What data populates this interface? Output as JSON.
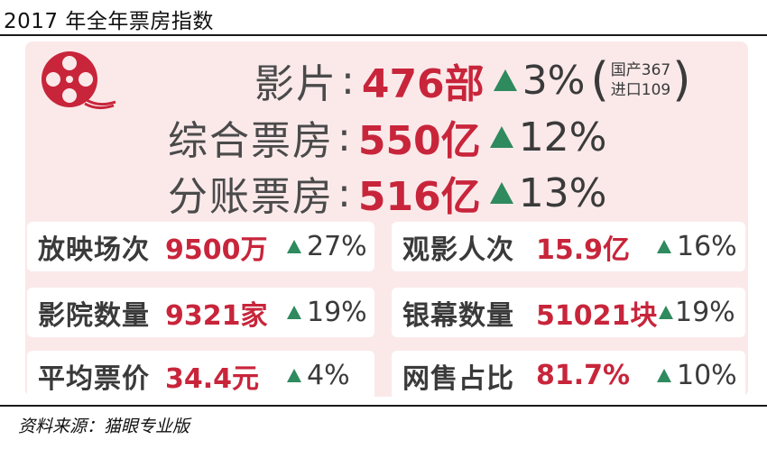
{
  "title": "2017 年全年票房指数",
  "headline": {
    "films": {
      "label": "影片",
      "value": "476部",
      "change": "3%",
      "domestic": "国产367",
      "imported": "进口109"
    },
    "gross_box": {
      "label": "综合票房",
      "value": "550亿",
      "change": "12%"
    },
    "split_box": {
      "label": "分账票房",
      "value": "516亿",
      "change": "13%"
    }
  },
  "metrics": [
    {
      "label": "放映场次",
      "value": "9500万",
      "change": "27%"
    },
    {
      "label": "观影人次",
      "value": "15.9亿",
      "change": "16%"
    },
    {
      "label": "影院数量",
      "value": "9321家",
      "change": "19%"
    },
    {
      "label": "银幕数量",
      "value": "51021块",
      "change": "19%"
    },
    {
      "label": "平均票价",
      "value": "34.4元",
      "change": "4%"
    },
    {
      "label": "网售占比",
      "value": "81.7%",
      "change": "10%"
    }
  ],
  "source": "资料来源：猫眼专业版",
  "colors": {
    "accent_red": "#c8253b",
    "up_green": "#2f8a5e",
    "panel_pink": "#fbe9ea"
  },
  "chart_data": {
    "type": "table",
    "title": "2017 年全年票房指数",
    "rows": [
      {
        "metric": "影片",
        "value": 476,
        "unit": "部",
        "yoy_change_pct": 3,
        "breakdown": {
          "国产": 367,
          "进口": 109
        }
      },
      {
        "metric": "综合票房",
        "value": 550,
        "unit": "亿",
        "yoy_change_pct": 12
      },
      {
        "metric": "分账票房",
        "value": 516,
        "unit": "亿",
        "yoy_change_pct": 13
      },
      {
        "metric": "放映场次",
        "value": 9500,
        "unit": "万",
        "yoy_change_pct": 27
      },
      {
        "metric": "观影人次",
        "value": 15.9,
        "unit": "亿",
        "yoy_change_pct": 16
      },
      {
        "metric": "影院数量",
        "value": 9321,
        "unit": "家",
        "yoy_change_pct": 19
      },
      {
        "metric": "银幕数量",
        "value": 51021,
        "unit": "块",
        "yoy_change_pct": 19
      },
      {
        "metric": "平均票价",
        "value": 34.4,
        "unit": "元",
        "yoy_change_pct": 4
      },
      {
        "metric": "网售占比",
        "value": 81.7,
        "unit": "%",
        "yoy_change_pct": 10
      }
    ]
  }
}
